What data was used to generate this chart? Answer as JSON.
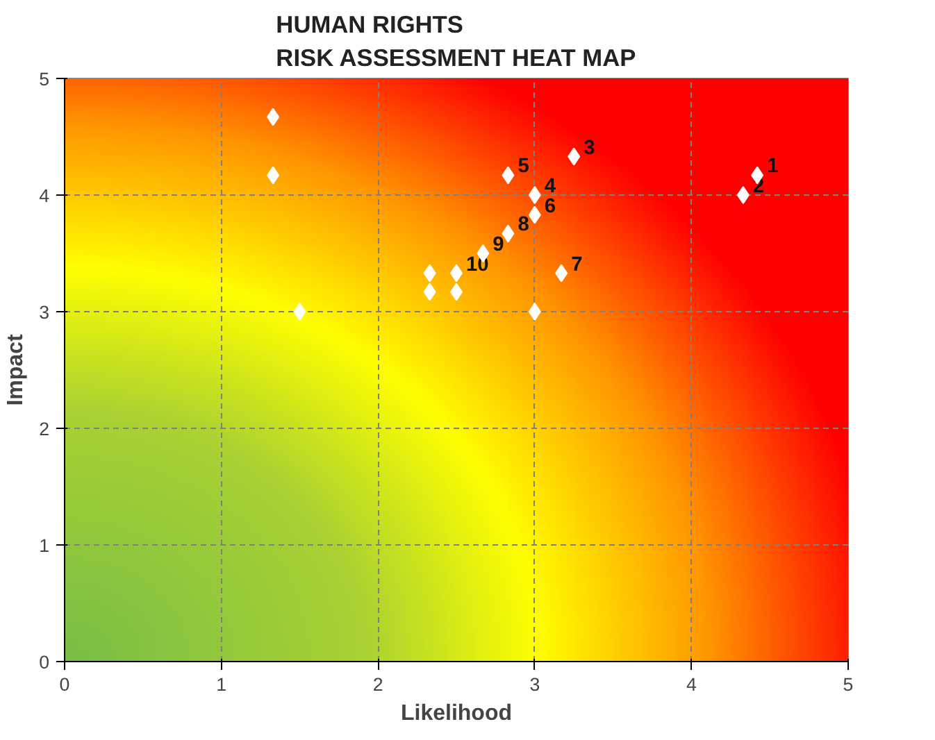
{
  "chart_data": {
    "type": "scatter",
    "title": "HUMAN RIGHTS\nRISK ASSESSMENT HEAT MAP",
    "xlabel": "Likelihood",
    "ylabel": "Impact",
    "x": [
      1.33,
      1.33,
      1.5,
      2.33,
      2.33,
      2.5,
      2.5,
      2.67,
      2.83,
      2.83,
      3.0,
      3.0,
      3.0,
      3.17,
      3.25,
      4.42,
      4.33
    ],
    "series": [
      {
        "color": "#ffffff",
        "values": [
          4.67,
          4.17,
          3.0,
          3.33,
          3.17,
          3.33,
          3.17,
          3.5,
          3.67,
          4.17,
          4.0,
          3.83,
          3.0,
          3.33,
          4.33,
          4.17,
          4.0
        ]
      }
    ],
    "annotations": [
      {
        "text": "1",
        "x": 4.42,
        "y": 4.17
      },
      {
        "text": "2",
        "x": 4.33,
        "y": 4.0
      },
      {
        "text": "3",
        "x": 3.25,
        "y": 4.33
      },
      {
        "text": "4",
        "x": 3.0,
        "y": 4.0
      },
      {
        "text": "5",
        "x": 2.83,
        "y": 4.17
      },
      {
        "text": "6",
        "x": 3.0,
        "y": 3.83
      },
      {
        "text": "7",
        "x": 3.17,
        "y": 3.33
      },
      {
        "text": "8",
        "x": 2.83,
        "y": 3.67
      },
      {
        "text": "9",
        "x": 2.67,
        "y": 3.5
      },
      {
        "text": "10",
        "x": 2.5,
        "y": 3.33
      }
    ],
    "xlim": [
      0,
      5
    ],
    "ylim": [
      0,
      5
    ],
    "xticks": [
      0,
      1,
      2,
      3,
      4,
      5
    ],
    "yticks": [
      0,
      1,
      2,
      3,
      4,
      5
    ],
    "grid": true,
    "marker": "diamond"
  }
}
